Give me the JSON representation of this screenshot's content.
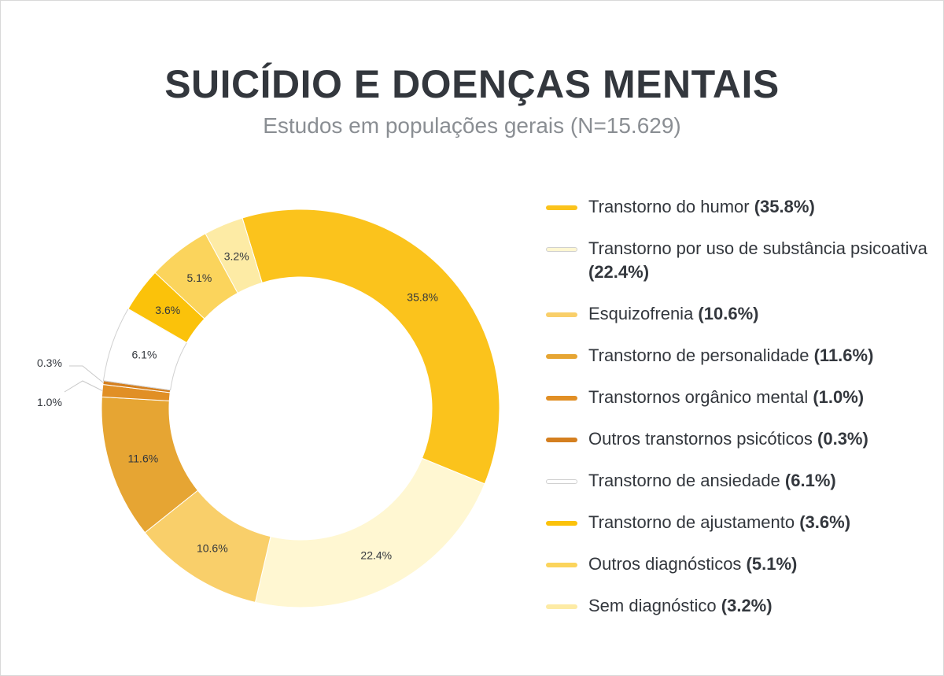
{
  "chart_data": {
    "type": "pie",
    "title": "SUICÍDIO E DOENÇAS MENTAIS",
    "subtitle": "Estudos em populações gerais (N=15.629)",
    "slices": [
      {
        "name": "Transtorno do humor",
        "label": "35.8%",
        "legend_value": "(35.8%)",
        "value": 35.8,
        "color": "#fbc31c"
      },
      {
        "name": "Transtorno por uso de substância psicoativa",
        "label": "22.4%",
        "legend_value": "(22.4%)",
        "value": 22.4,
        "color": "#fff7d2"
      },
      {
        "name": "Esquizofrenia",
        "label": "10.6%",
        "legend_value": "(10.6%)",
        "value": 10.6,
        "color": "#f9cf6a"
      },
      {
        "name": "Transtorno de personalidade",
        "label": "11.6%",
        "legend_value": "(11.6%)",
        "value": 11.6,
        "color": "#e6a533"
      },
      {
        "name": "Transtornos orgânico mental",
        "label": "1.0%",
        "legend_value": "(1.0%)",
        "value": 1.0,
        "color": "#e18f25"
      },
      {
        "name": "Outros transtornos psicóticos",
        "label": "0.3%",
        "legend_value": "(0.3%)",
        "value": 0.3,
        "color": "#d47f1f"
      },
      {
        "name": "Transtorno de ansiedade",
        "label": "6.1%",
        "legend_value": "(6.1%)",
        "value": 6.1,
        "color": "#ffffff"
      },
      {
        "name": "Transtorno de ajustamento",
        "label": "3.6%",
        "legend_value": "(3.6%)",
        "value": 3.6,
        "color": "#fbc20a"
      },
      {
        "name": "Outros diagnósticos",
        "label": "5.1%",
        "legend_value": "(5.1%)",
        "value": 5.1,
        "color": "#fbd45c"
      },
      {
        "name": "Sem diagnóstico",
        "label": "3.2%",
        "legend_value": "(3.2%)",
        "value": 3.2,
        "color": "#fdeba5"
      }
    ],
    "legend_placement": "right"
  }
}
